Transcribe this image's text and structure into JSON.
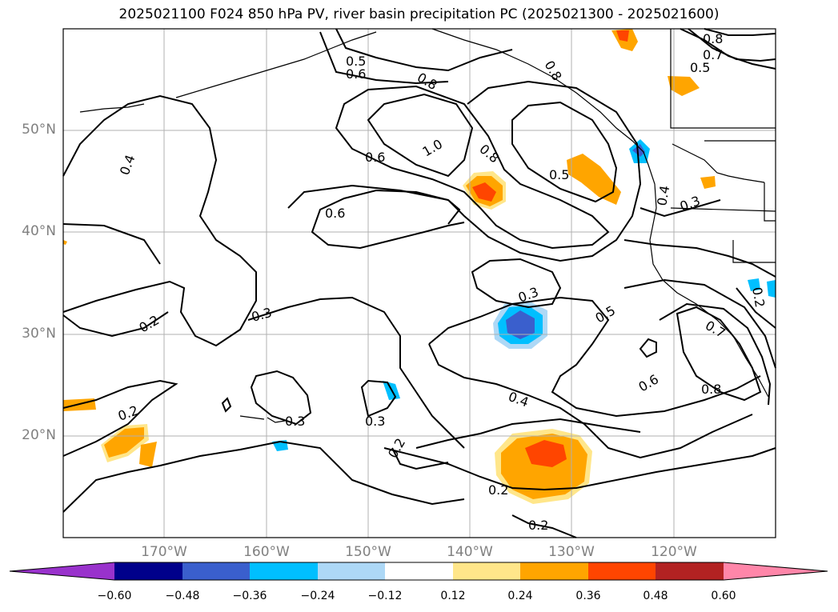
{
  "title": "2025021100 F024 850 hPa PV, river basin precipitation PC (2025021300 - 2025021600)",
  "axes": {
    "lat_labels": [
      "50°N",
      "40°N",
      "30°N",
      "20°N"
    ],
    "lon_labels": [
      "170°W",
      "160°W",
      "150°W",
      "140°W",
      "130°W",
      "120°W"
    ]
  },
  "colorbar": {
    "ticks": [
      "−0.60",
      "−0.48",
      "−0.36",
      "−0.24",
      "−0.12",
      "0.12",
      "0.24",
      "0.36",
      "0.48",
      "0.60"
    ],
    "colors": [
      "#9932cc",
      "#00008b",
      "#3a5fcd",
      "#00bfff",
      "#add8f6",
      "#ffffff",
      "#ffe68a",
      "#ffa500",
      "#ff4500",
      "#b22222",
      "#ff86a9"
    ]
  },
  "contour_labels": [
    {
      "text": "0.5"
    },
    {
      "text": "0.6"
    },
    {
      "text": "0.8"
    },
    {
      "text": "0.8"
    },
    {
      "text": "0.7"
    },
    {
      "text": "0.5"
    },
    {
      "text": "0.8"
    },
    {
      "text": "1.0"
    },
    {
      "text": "0.6"
    },
    {
      "text": "0.8"
    },
    {
      "text": "0.5"
    },
    {
      "text": "0.4"
    },
    {
      "text": "0.6"
    },
    {
      "text": "0.4"
    },
    {
      "text": "0.3"
    },
    {
      "text": "0.3"
    },
    {
      "text": "0.2"
    },
    {
      "text": "0.3"
    },
    {
      "text": "0.5"
    },
    {
      "text": "0.7"
    },
    {
      "text": "0.2"
    },
    {
      "text": "0.6"
    },
    {
      "text": "0.8"
    },
    {
      "text": "0.4"
    },
    {
      "text": "0.2"
    },
    {
      "text": "0.3"
    },
    {
      "text": "0.3"
    },
    {
      "text": "0.2"
    },
    {
      "text": "0.2"
    },
    {
      "text": "0.2"
    }
  ]
}
